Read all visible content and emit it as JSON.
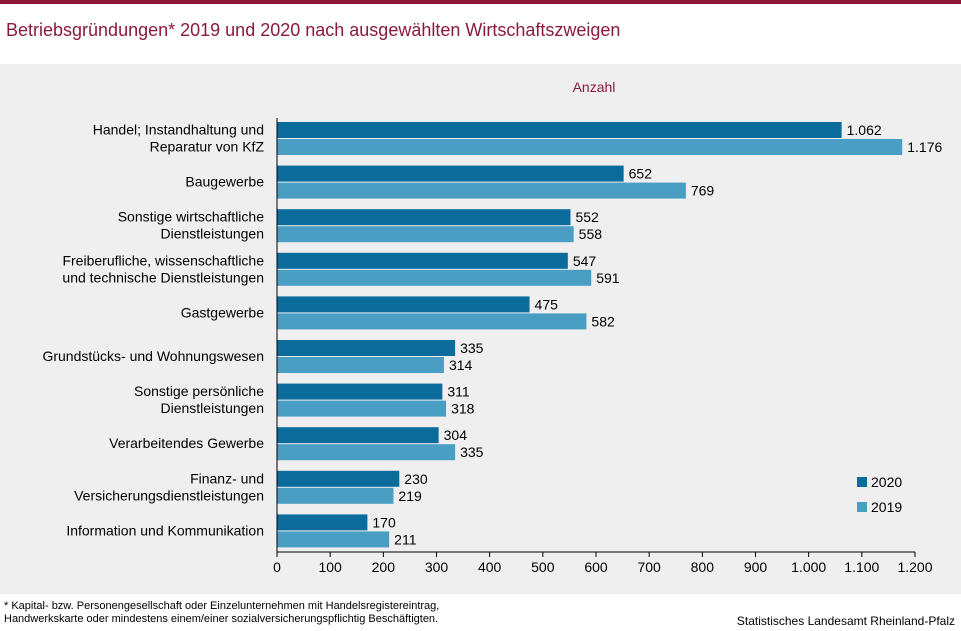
{
  "title": "Betriebsgründungen* 2019 und 2020  nach ausgewählten Wirtschaftszweigen",
  "footnote": {
    "line1": "* Kapital- bzw. Personengesellschaft  oder Einzelunternehmen  mit  Handelsregistereintrag,",
    "line2": "Handwerkskarte  oder mindestens  einem/einer  sozialversicherungspflichtig  Beschäftigten."
  },
  "source": "Statistisches Landesamt Rheinland-Pfalz",
  "colors": {
    "accent": "#8b1a3a",
    "series2020": "#0b6b9a",
    "series2019": "#4a9ec4",
    "panel": "#efefef"
  },
  "chart_data": {
    "type": "bar",
    "orientation": "horizontal",
    "unit_label": "Anzahl",
    "categories": [
      [
        "Handel; Instandhaltung und",
        "Reparatur von KfZ"
      ],
      [
        "Baugewerbe"
      ],
      [
        "Sonstige wirtschaftliche",
        "Dienstleistungen"
      ],
      [
        "Freiberufliche, wissenschaftliche",
        "und technische Dienstleistungen"
      ],
      [
        "Gastgewerbe"
      ],
      [
        "Grundstücks- und Wohnungswesen"
      ],
      [
        "Sonstige persönliche",
        "Dienstleistungen"
      ],
      [
        "Verarbeitendes Gewerbe"
      ],
      [
        "Finanz- und",
        "Versicherungsdienstleistungen"
      ],
      [
        "Information und Kommunikation"
      ]
    ],
    "series": [
      {
        "name": "2020",
        "color": "#0b6b9a",
        "values": [
          1062,
          652,
          552,
          547,
          475,
          335,
          311,
          304,
          230,
          170
        ],
        "labels": [
          "1.062",
          "652",
          "552",
          "547",
          "475",
          "335",
          "311",
          "304",
          "230",
          "170"
        ]
      },
      {
        "name": "2019",
        "color": "#4a9ec4",
        "values": [
          1176,
          769,
          558,
          591,
          582,
          314,
          318,
          335,
          219,
          211
        ],
        "labels": [
          "1.176",
          "769",
          "558",
          "591",
          "582",
          "314",
          "318",
          "335",
          "219",
          "211"
        ]
      }
    ],
    "xlim": [
      0,
      1200
    ],
    "xticks": [
      0,
      100,
      200,
      300,
      400,
      500,
      600,
      700,
      800,
      900,
      1000,
      1100,
      1200
    ],
    "xtick_labels": [
      "0",
      "100",
      "200",
      "300",
      "400",
      "500",
      "600",
      "700",
      "800",
      "900",
      "1.000",
      "1.100",
      "1.200"
    ],
    "grid": false,
    "legend_position": "bottom-right"
  }
}
